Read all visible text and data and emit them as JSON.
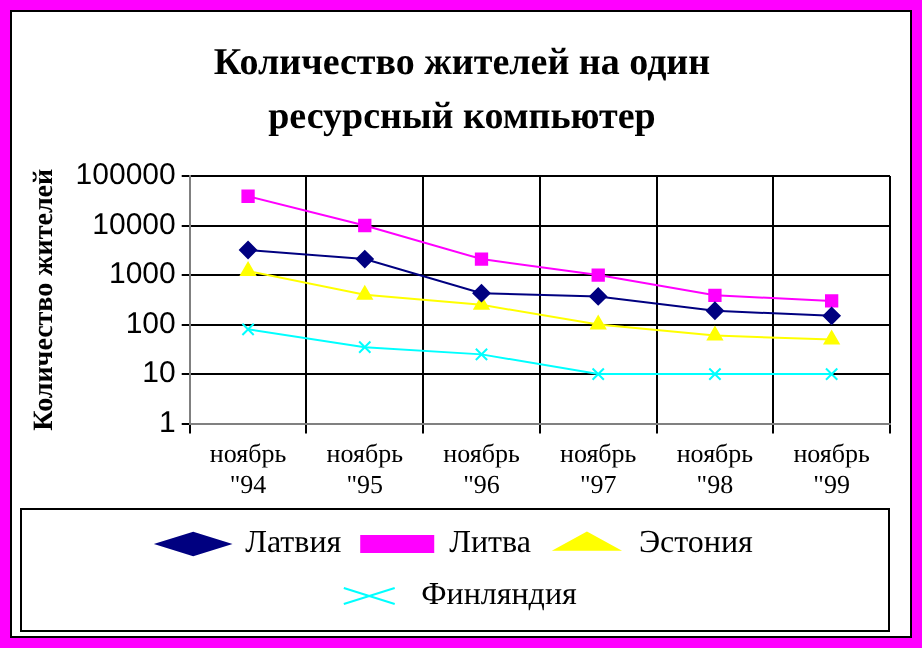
{
  "chart_data": {
    "type": "line",
    "title": "Количество жителей на один ресурсный компьютер",
    "ylabel": "Количество жителей",
    "categories": [
      "ноябрь \"94",
      "ноябрь \"95",
      "ноябрь \"96",
      "ноябрь \"97",
      "ноябрь \"98",
      "ноябрь \"99"
    ],
    "series": [
      {
        "name": "Латвия",
        "color": "#000080",
        "marker": "diamond",
        "values": [
          3200,
          2100,
          430,
          370,
          190,
          150
        ]
      },
      {
        "name": "Литва",
        "color": "#ff00ff",
        "marker": "square",
        "values": [
          39000,
          10000,
          2100,
          1000,
          390,
          300
        ]
      },
      {
        "name": "Эстония",
        "color": "#ffff00",
        "marker": "triangle",
        "values": [
          1200,
          400,
          250,
          100,
          60,
          50
        ]
      },
      {
        "name": "Финляндия",
        "color": "#00ffff",
        "marker": "cross",
        "values": [
          80,
          35,
          25,
          10,
          10,
          10
        ]
      }
    ],
    "log": "y",
    "ylim": [
      1,
      100000
    ],
    "yticks": [
      1,
      10,
      100,
      1000,
      10000,
      100000
    ],
    "grid": true,
    "legend": "bottom"
  }
}
